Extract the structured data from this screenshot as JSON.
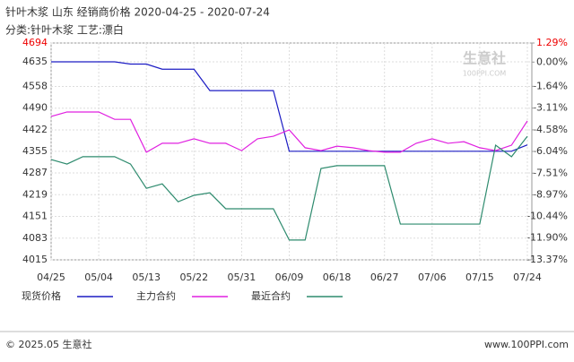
{
  "chart_data": {
    "type": "line",
    "title": "针叶木浆 山东 经销商价格 2020-04-25 - 2020-07-24",
    "subtitle": "分类:针叶木浆 工艺:漂白",
    "watermark": "生意社",
    "watermark_sub": "100PPI.COM",
    "footer_left": "© 2025.05 生意社",
    "footer_right": "www.100PPI.com",
    "categories": [
      "04/25",
      null,
      null,
      "05/04",
      null,
      null,
      "05/13",
      null,
      null,
      "05/22",
      null,
      null,
      "05/31",
      null,
      null,
      "06/09",
      null,
      null,
      "06/18",
      null,
      null,
      "06/27",
      null,
      null,
      "07/06",
      null,
      null,
      "07/15",
      null,
      null,
      "07/24"
    ],
    "series": [
      {
        "name": "现货价格",
        "color": "#1c1cc4",
        "values": [
          4635,
          4635,
          4635,
          4635,
          4635,
          4628,
          4628,
          4612,
          4612,
          4612,
          4545,
          4545,
          4545,
          4545,
          4545,
          4355,
          4355,
          4355,
          4355,
          4355,
          4355,
          4355,
          4355,
          4355,
          4355,
          4355,
          4355,
          4355,
          4355,
          4355,
          4375
        ]
      },
      {
        "name": "主力合约",
        "color": "#e020e0",
        "values": [
          4464,
          4478,
          4478,
          4478,
          4455,
          4455,
          4352,
          4380,
          4380,
          4394,
          4380,
          4380,
          4357,
          4394,
          4402,
          4422,
          4366,
          4357,
          4371,
          4366,
          4357,
          4352,
          4352,
          4380,
          4394,
          4380,
          4385,
          4366,
          4357,
          4374,
          4450
        ]
      },
      {
        "name": "最近合约",
        "color": "#2e8b6e",
        "values": [
          4329,
          4315,
          4338,
          4338,
          4338,
          4315,
          4239,
          4253,
          4197,
          4217,
          4225,
          4175,
          4175,
          4175,
          4175,
          4077,
          4077,
          4301,
          4310,
          4310,
          4310,
          4310,
          4127,
          4127,
          4127,
          4127,
          4127,
          4127,
          4374,
          4338,
          4402
        ]
      }
    ],
    "ylim": [
      4015,
      4694
    ],
    "yticks": [
      4015,
      4083,
      4151,
      4219,
      4287,
      4355,
      4422,
      4490,
      4558,
      4635,
      4694
    ],
    "y2lim": [
      -13.37,
      1.29
    ],
    "y2ticks": [
      {
        "value": -13.37,
        "label": "-13.37%"
      },
      {
        "value": -11.9,
        "label": "-11.90%"
      },
      {
        "value": -10.44,
        "label": "-10.44%"
      },
      {
        "value": -8.97,
        "label": "-8.97%"
      },
      {
        "value": -7.51,
        "label": "-7.51%"
      },
      {
        "value": -6.04,
        "label": "-6.04%"
      },
      {
        "value": -4.58,
        "label": "-4.58%"
      },
      {
        "value": -3.11,
        "label": "-3.11%"
      },
      {
        "value": -1.64,
        "label": "-1.64%"
      },
      {
        "value": 0.0,
        "label": "0.00%"
      },
      {
        "value": 1.29,
        "label": "1.29%"
      }
    ],
    "grid": true
  }
}
